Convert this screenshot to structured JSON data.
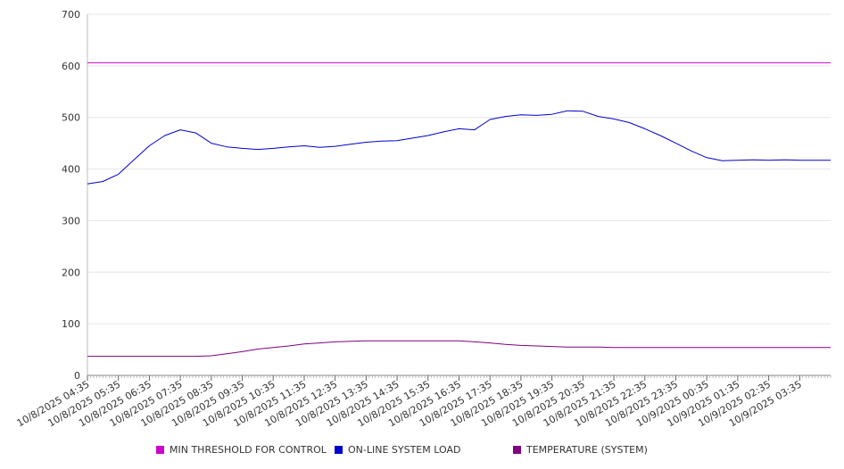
{
  "chart_data": {
    "type": "line",
    "title": "",
    "xlabel": "",
    "ylabel": "",
    "ylim": [
      0,
      700
    ],
    "yticks": [
      "0",
      "100",
      "200",
      "300",
      "400",
      "500",
      "600",
      "700"
    ],
    "xtick_labels": [
      "10/8/2025 04:35",
      "10/8/2025 05:35",
      "10/8/2025 06:35",
      "10/8/2025 07:35",
      "10/8/2025 08:35",
      "10/8/2025 09:35",
      "10/8/2025 10:35",
      "10/8/2025 11:35",
      "10/8/2025 12:35",
      "10/8/2025 13:35",
      "10/8/2025 14:35",
      "10/8/2025 15:35",
      "10/8/2025 16:35",
      "10/8/2025 17:35",
      "10/8/2025 18:35",
      "10/8/2025 19:35",
      "10/8/2025 20:35",
      "10/8/2025 21:35",
      "10/8/2025 22:35",
      "10/8/2025 23:35",
      "10/9/2025 00:35",
      "10/9/2025 01:35",
      "10/9/2025 02:35",
      "10/9/2025 03:35"
    ],
    "x_hours": [
      0,
      0.5,
      1,
      1.5,
      2,
      2.5,
      3,
      3.5,
      4,
      4.5,
      5,
      5.5,
      6,
      6.5,
      7,
      7.5,
      8,
      8.5,
      9,
      9.5,
      10,
      10.5,
      11,
      11.5,
      12,
      12.5,
      13,
      13.5,
      14,
      14.5,
      15,
      15.5,
      16,
      16.5,
      17,
      17.5,
      18,
      18.5,
      19,
      19.5,
      20,
      20.5,
      21,
      21.5,
      22,
      22.5,
      23,
      23.5,
      24
    ],
    "grid": true,
    "legend_position": "bottom",
    "series": [
      {
        "name": "MIN THRESHOLD FOR CONTROL",
        "color": "#cc00cc",
        "values": [
          606,
          606,
          606,
          606,
          606,
          606,
          606,
          606,
          606,
          606,
          606,
          606,
          606,
          606,
          606,
          606,
          606,
          606,
          606,
          606,
          606,
          606,
          606,
          606,
          606,
          606,
          606,
          606,
          606,
          606,
          606,
          606,
          606,
          606,
          606,
          606,
          606,
          606,
          606,
          606,
          606,
          606,
          606,
          606,
          606,
          606,
          606,
          606,
          606
        ]
      },
      {
        "name": "ON-LINE SYSTEM LOAD",
        "color": "#0000cc",
        "values": [
          371,
          376,
          390,
          418,
          445,
          465,
          476,
          470,
          450,
          443,
          440,
          438,
          440,
          443,
          445,
          442,
          444,
          448,
          452,
          454,
          455,
          460,
          465,
          472,
          478,
          476,
          496,
          502,
          505,
          504,
          506,
          513,
          512,
          502,
          497,
          490,
          478,
          465,
          450,
          435,
          422,
          416,
          417,
          418,
          417,
          418,
          417,
          417,
          417
        ]
      },
      {
        "name": "TEMPERATURE (SYSTEM)",
        "color": "#800080",
        "values": [
          37,
          37,
          37,
          37,
          37,
          37,
          37,
          37,
          38,
          42,
          46,
          51,
          54,
          57,
          61,
          63,
          65,
          66,
          67,
          67,
          67,
          67,
          67,
          67,
          67,
          65,
          63,
          60,
          58,
          57,
          56,
          55,
          55,
          55,
          54,
          54,
          54,
          54,
          54,
          54,
          54,
          54,
          54,
          54,
          54,
          54,
          54,
          54,
          54
        ]
      }
    ]
  }
}
